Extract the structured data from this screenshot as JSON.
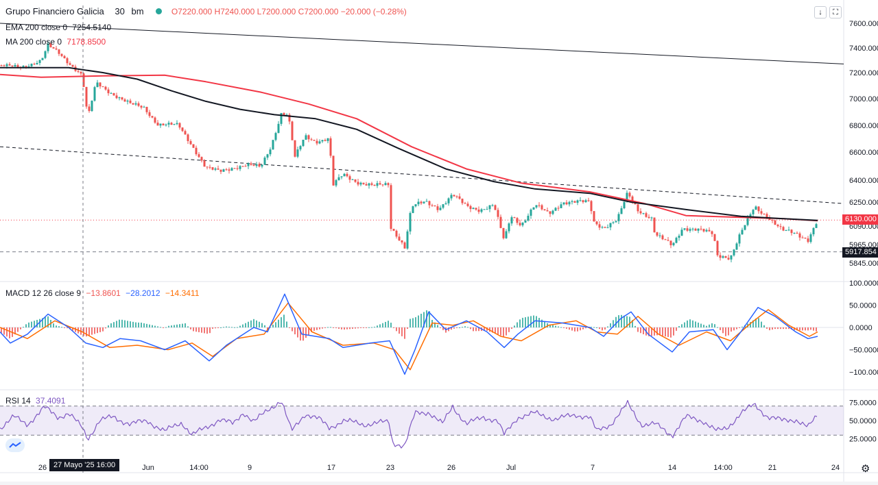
{
  "header": {
    "symbol": "Grupo Financiero Galicia",
    "interval": "30",
    "exchange": "bm",
    "ohlc": "O7220.000  H7240.000  L7200.000  C7200.000  −20.000  (−0.28%)"
  },
  "legend": {
    "ema": {
      "label": "EMA 200 close 0",
      "value": "7254.5140"
    },
    "ma": {
      "label": "MA 200 close 0",
      "value": "7178.8500"
    },
    "macd": {
      "label": "MACD 12 26 close 9",
      "hist": "−13.8601",
      "macd": "−28.2012",
      "signal": "−14.3411"
    },
    "rsi": {
      "label": "RSI 14",
      "value": "37.4091"
    }
  },
  "buttons": {
    "down_arrow": "↓",
    "maximize": "⛶",
    "settings": "⚙"
  },
  "crosshair_label": "27 Mayo '25   16:00",
  "price_labels": {
    "last": "6130.000",
    "level": "5917.854"
  },
  "colors": {
    "up": "#26a69a",
    "down": "#ef5350",
    "ema": "#131722",
    "ma": "#f23645",
    "macd": "#2962ff",
    "signal": "#ff6d00",
    "rsi": "#7e57c2",
    "axis_text": "#131722"
  },
  "chart_data": [
    {
      "type": "candlestick",
      "title": "Grupo Financiero Galicia · 30 · bm",
      "x_ticks": [
        "26",
        "Jun",
        "14:00",
        "9",
        "17",
        "23",
        "26",
        "Jul",
        "7",
        "14",
        "14:00",
        "21",
        "24"
      ],
      "y_ticks": [
        "7600.000",
        "7400.000",
        "7200.000",
        "7000.000",
        "6800.000",
        "6600.000",
        "6400.000",
        "6250.000",
        "6090.000",
        "5965.000",
        "5845.000"
      ],
      "anchors": [
        {
          "x": 0,
          "y": 7260
        },
        {
          "x": 30,
          "y": 7240
        },
        {
          "x": 60,
          "y": 7300
        },
        {
          "x": 70,
          "y": 7420
        },
        {
          "x": 85,
          "y": 7360
        },
        {
          "x": 100,
          "y": 7280
        },
        {
          "x": 120,
          "y": 7180
        },
        {
          "x": 128,
          "y": 6850
        },
        {
          "x": 140,
          "y": 7120
        },
        {
          "x": 160,
          "y": 7050
        },
        {
          "x": 190,
          "y": 6960
        },
        {
          "x": 210,
          "y": 6930
        },
        {
          "x": 230,
          "y": 6810
        },
        {
          "x": 260,
          "y": 6800
        },
        {
          "x": 280,
          "y": 6650
        },
        {
          "x": 300,
          "y": 6490
        },
        {
          "x": 320,
          "y": 6460
        },
        {
          "x": 340,
          "y": 6490
        },
        {
          "x": 360,
          "y": 6510
        },
        {
          "x": 380,
          "y": 6490
        },
        {
          "x": 395,
          "y": 6640
        },
        {
          "x": 410,
          "y": 6890
        },
        {
          "x": 420,
          "y": 6880
        },
        {
          "x": 430,
          "y": 6560
        },
        {
          "x": 445,
          "y": 6720
        },
        {
          "x": 460,
          "y": 6680
        },
        {
          "x": 480,
          "y": 6700
        },
        {
          "x": 485,
          "y": 6360
        },
        {
          "x": 500,
          "y": 6440
        },
        {
          "x": 520,
          "y": 6390
        },
        {
          "x": 545,
          "y": 6360
        },
        {
          "x": 567,
          "y": 6370
        },
        {
          "x": 570,
          "y": 6080
        },
        {
          "x": 580,
          "y": 6020
        },
        {
          "x": 590,
          "y": 5950
        },
        {
          "x": 600,
          "y": 6220
        },
        {
          "x": 620,
          "y": 6250
        },
        {
          "x": 640,
          "y": 6210
        },
        {
          "x": 660,
          "y": 6300
        },
        {
          "x": 680,
          "y": 6220
        },
        {
          "x": 700,
          "y": 6200
        },
        {
          "x": 720,
          "y": 6230
        },
        {
          "x": 735,
          "y": 5990
        },
        {
          "x": 745,
          "y": 6160
        },
        {
          "x": 760,
          "y": 6100
        },
        {
          "x": 780,
          "y": 6230
        },
        {
          "x": 800,
          "y": 6170
        },
        {
          "x": 820,
          "y": 6250
        },
        {
          "x": 860,
          "y": 6250
        },
        {
          "x": 865,
          "y": 6120
        },
        {
          "x": 880,
          "y": 6080
        },
        {
          "x": 900,
          "y": 6130
        },
        {
          "x": 915,
          "y": 6310
        },
        {
          "x": 930,
          "y": 6200
        },
        {
          "x": 950,
          "y": 6140
        },
        {
          "x": 955,
          "y": 6030
        },
        {
          "x": 980,
          "y": 5960
        },
        {
          "x": 995,
          "y": 6080
        },
        {
          "x": 1020,
          "y": 6060
        },
        {
          "x": 1040,
          "y": 6040
        },
        {
          "x": 1045,
          "y": 5900
        },
        {
          "x": 1065,
          "y": 5880
        },
        {
          "x": 1080,
          "y": 6040
        },
        {
          "x": 1100,
          "y": 6220
        },
        {
          "x": 1120,
          "y": 6150
        },
        {
          "x": 1140,
          "y": 6060
        },
        {
          "x": 1160,
          "y": 6040
        },
        {
          "x": 1178,
          "y": 6000
        },
        {
          "x": 1192,
          "y": 6130
        }
      ],
      "ema_200": [
        {
          "x": 0,
          "y": 7240
        },
        {
          "x": 100,
          "y": 7240
        },
        {
          "x": 150,
          "y": 7200
        },
        {
          "x": 200,
          "y": 7150
        },
        {
          "x": 250,
          "y": 7060
        },
        {
          "x": 300,
          "y": 6980
        },
        {
          "x": 350,
          "y": 6920
        },
        {
          "x": 400,
          "y": 6880
        },
        {
          "x": 460,
          "y": 6850
        },
        {
          "x": 520,
          "y": 6770
        },
        {
          "x": 580,
          "y": 6630
        },
        {
          "x": 650,
          "y": 6480
        },
        {
          "x": 720,
          "y": 6390
        },
        {
          "x": 780,
          "y": 6340
        },
        {
          "x": 860,
          "y": 6310
        },
        {
          "x": 920,
          "y": 6250
        },
        {
          "x": 1000,
          "y": 6200
        },
        {
          "x": 1080,
          "y": 6155
        },
        {
          "x": 1140,
          "y": 6140
        },
        {
          "x": 1192,
          "y": 6128
        }
      ],
      "ma_200": [
        {
          "x": 0,
          "y": 7185
        },
        {
          "x": 60,
          "y": 7165
        },
        {
          "x": 150,
          "y": 7175
        },
        {
          "x": 240,
          "y": 7180
        },
        {
          "x": 300,
          "y": 7130
        },
        {
          "x": 380,
          "y": 7050
        },
        {
          "x": 450,
          "y": 6960
        },
        {
          "x": 520,
          "y": 6850
        },
        {
          "x": 600,
          "y": 6640
        },
        {
          "x": 680,
          "y": 6480
        },
        {
          "x": 760,
          "y": 6380
        },
        {
          "x": 860,
          "y": 6320
        },
        {
          "x": 940,
          "y": 6240
        },
        {
          "x": 1000,
          "y": 6160
        },
        {
          "x": 1080,
          "y": 6148
        },
        {
          "x": 1140,
          "y": 6140
        },
        {
          "x": 1192,
          "y": 6125
        }
      ],
      "trendlines": [
        {
          "style": "solid",
          "from": {
            "x": 0,
            "y": 7600
          },
          "to": {
            "x": 1230,
            "y": 7270
          }
        },
        {
          "style": "dashed",
          "from": {
            "x": 0,
            "y": 6640
          },
          "to": {
            "x": 1230,
            "y": 6240
          }
        }
      ],
      "horizontal_levels": [
        {
          "style": "dotted",
          "value": 6130
        },
        {
          "style": "dashed",
          "value": 5917.854
        }
      ]
    },
    {
      "type": "line",
      "title": "MACD 12 26 close 9",
      "y_ticks": [
        "100.0000",
        "50.0000",
        "0.0000",
        "−50.0000",
        "−100.0000"
      ],
      "macd": [
        {
          "x": 0,
          "y": -10
        },
        {
          "x": 15,
          "y": -35
        },
        {
          "x": 40,
          "y": -15
        },
        {
          "x": 70,
          "y": 30
        },
        {
          "x": 100,
          "y": 0
        },
        {
          "x": 125,
          "y": -35
        },
        {
          "x": 150,
          "y": -45
        },
        {
          "x": 175,
          "y": -25
        },
        {
          "x": 205,
          "y": -30
        },
        {
          "x": 240,
          "y": -50
        },
        {
          "x": 270,
          "y": -30
        },
        {
          "x": 305,
          "y": -75
        },
        {
          "x": 330,
          "y": -40
        },
        {
          "x": 370,
          "y": 0
        },
        {
          "x": 390,
          "y": -10
        },
        {
          "x": 415,
          "y": 75
        },
        {
          "x": 440,
          "y": -15
        },
        {
          "x": 480,
          "y": -25
        },
        {
          "x": 500,
          "y": -45
        },
        {
          "x": 540,
          "y": -35
        },
        {
          "x": 568,
          "y": -30
        },
        {
          "x": 590,
          "y": -105
        },
        {
          "x": 605,
          "y": -50
        },
        {
          "x": 625,
          "y": 35
        },
        {
          "x": 650,
          "y": -5
        },
        {
          "x": 680,
          "y": 15
        },
        {
          "x": 710,
          "y": -10
        },
        {
          "x": 735,
          "y": -45
        },
        {
          "x": 755,
          "y": -15
        },
        {
          "x": 780,
          "y": 15
        },
        {
          "x": 820,
          "y": 10
        },
        {
          "x": 860,
          "y": 0
        },
        {
          "x": 880,
          "y": -20
        },
        {
          "x": 905,
          "y": 20
        },
        {
          "x": 920,
          "y": 35
        },
        {
          "x": 945,
          "y": -15
        },
        {
          "x": 980,
          "y": -55
        },
        {
          "x": 1005,
          "y": -10
        },
        {
          "x": 1040,
          "y": -5
        },
        {
          "x": 1060,
          "y": -50
        },
        {
          "x": 1080,
          "y": -10
        },
        {
          "x": 1105,
          "y": 45
        },
        {
          "x": 1130,
          "y": 25
        },
        {
          "x": 1160,
          "y": -10
        },
        {
          "x": 1178,
          "y": -25
        },
        {
          "x": 1192,
          "y": -20
        }
      ],
      "signal": [
        {
          "x": 0,
          "y": 0
        },
        {
          "x": 40,
          "y": -25
        },
        {
          "x": 80,
          "y": 15
        },
        {
          "x": 120,
          "y": -10
        },
        {
          "x": 160,
          "y": -45
        },
        {
          "x": 200,
          "y": -40
        },
        {
          "x": 245,
          "y": -50
        },
        {
          "x": 280,
          "y": -35
        },
        {
          "x": 310,
          "y": -65
        },
        {
          "x": 345,
          "y": -25
        },
        {
          "x": 385,
          "y": -15
        },
        {
          "x": 420,
          "y": 55
        },
        {
          "x": 455,
          "y": -10
        },
        {
          "x": 500,
          "y": -40
        },
        {
          "x": 545,
          "y": -35
        },
        {
          "x": 575,
          "y": -50
        },
        {
          "x": 598,
          "y": -95
        },
        {
          "x": 630,
          "y": 10
        },
        {
          "x": 660,
          "y": 5
        },
        {
          "x": 690,
          "y": 15
        },
        {
          "x": 730,
          "y": -20
        },
        {
          "x": 760,
          "y": -30
        },
        {
          "x": 800,
          "y": 5
        },
        {
          "x": 840,
          "y": 15
        },
        {
          "x": 870,
          "y": -10
        },
        {
          "x": 900,
          "y": -15
        },
        {
          "x": 930,
          "y": 25
        },
        {
          "x": 960,
          "y": -15
        },
        {
          "x": 990,
          "y": -40
        },
        {
          "x": 1030,
          "y": -10
        },
        {
          "x": 1065,
          "y": -30
        },
        {
          "x": 1095,
          "y": 10
        },
        {
          "x": 1120,
          "y": 40
        },
        {
          "x": 1150,
          "y": 5
        },
        {
          "x": 1180,
          "y": -20
        },
        {
          "x": 1192,
          "y": -10
        }
      ]
    },
    {
      "type": "line",
      "title": "RSI 14",
      "y_ticks": [
        "75.0000",
        "50.0000",
        "25.0000"
      ],
      "bands": [
        30,
        70
      ],
      "rsi": [
        {
          "x": 0,
          "y": 40
        },
        {
          "x": 20,
          "y": 55
        },
        {
          "x": 40,
          "y": 45
        },
        {
          "x": 65,
          "y": 68
        },
        {
          "x": 85,
          "y": 55
        },
        {
          "x": 100,
          "y": 60
        },
        {
          "x": 120,
          "y": 40
        },
        {
          "x": 128,
          "y": 25
        },
        {
          "x": 145,
          "y": 50
        },
        {
          "x": 165,
          "y": 55
        },
        {
          "x": 190,
          "y": 45
        },
        {
          "x": 215,
          "y": 50
        },
        {
          "x": 240,
          "y": 35
        },
        {
          "x": 265,
          "y": 48
        },
        {
          "x": 280,
          "y": 30
        },
        {
          "x": 300,
          "y": 40
        },
        {
          "x": 320,
          "y": 52
        },
        {
          "x": 340,
          "y": 45
        },
        {
          "x": 355,
          "y": 62
        },
        {
          "x": 370,
          "y": 48
        },
        {
          "x": 395,
          "y": 68
        },
        {
          "x": 410,
          "y": 78
        },
        {
          "x": 425,
          "y": 35
        },
        {
          "x": 445,
          "y": 60
        },
        {
          "x": 465,
          "y": 52
        },
        {
          "x": 480,
          "y": 40
        },
        {
          "x": 500,
          "y": 50
        },
        {
          "x": 530,
          "y": 45
        },
        {
          "x": 567,
          "y": 48
        },
        {
          "x": 572,
          "y": 20
        },
        {
          "x": 590,
          "y": 15
        },
        {
          "x": 605,
          "y": 60
        },
        {
          "x": 625,
          "y": 62
        },
        {
          "x": 645,
          "y": 45
        },
        {
          "x": 660,
          "y": 70
        },
        {
          "x": 680,
          "y": 45
        },
        {
          "x": 705,
          "y": 55
        },
        {
          "x": 725,
          "y": 50
        },
        {
          "x": 735,
          "y": 30
        },
        {
          "x": 755,
          "y": 55
        },
        {
          "x": 780,
          "y": 60
        },
        {
          "x": 810,
          "y": 52
        },
        {
          "x": 840,
          "y": 58
        },
        {
          "x": 860,
          "y": 55
        },
        {
          "x": 870,
          "y": 35
        },
        {
          "x": 890,
          "y": 45
        },
        {
          "x": 915,
          "y": 73
        },
        {
          "x": 935,
          "y": 45
        },
        {
          "x": 955,
          "y": 45
        },
        {
          "x": 980,
          "y": 30
        },
        {
          "x": 1000,
          "y": 55
        },
        {
          "x": 1025,
          "y": 50
        },
        {
          "x": 1045,
          "y": 35
        },
        {
          "x": 1060,
          "y": 40
        },
        {
          "x": 1080,
          "y": 60
        },
        {
          "x": 1100,
          "y": 72
        },
        {
          "x": 1120,
          "y": 55
        },
        {
          "x": 1140,
          "y": 50
        },
        {
          "x": 1160,
          "y": 52
        },
        {
          "x": 1178,
          "y": 40
        },
        {
          "x": 1192,
          "y": 58
        }
      ]
    }
  ]
}
